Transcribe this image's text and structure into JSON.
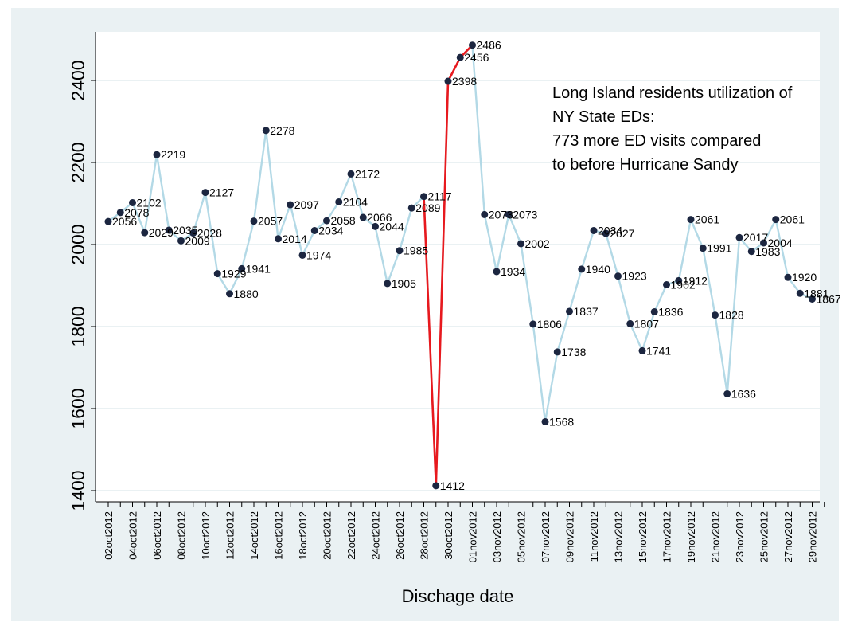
{
  "chart_data": {
    "type": "line",
    "title": "",
    "xlabel": "Dischage date",
    "ylabel": "",
    "ylim": [
      1380,
      2510
    ],
    "yticks": [
      1400,
      1600,
      1800,
      2000,
      2200,
      2400
    ],
    "grid": true,
    "legend": "none",
    "annotation": [
      "Long Island residents utilization of",
      "NY State EDs:",
      "773 more ED visits compared",
      "to before Hurricane Sandy"
    ],
    "x_tick_labels": [
      "02oct2012",
      "04oct2012",
      "06oct2012",
      "08oct2012",
      "10oct2012",
      "12oct2012",
      "14oct2012",
      "16oct2012",
      "18oct2012",
      "20oct2012",
      "22oct2012",
      "24oct2012",
      "26oct2012",
      "28oct2012",
      "30oct2012",
      "01nov2012",
      "03nov2012",
      "05nov2012",
      "07nov2012",
      "09nov2012",
      "11nov2012",
      "13nov2012",
      "15nov2012",
      "17nov2012",
      "19nov2012",
      "21nov2012",
      "23nov2012",
      "25nov2012",
      "27nov2012",
      "29nov2012"
    ],
    "x": [
      "02oct2012",
      "03oct2012",
      "04oct2012",
      "05oct2012",
      "06oct2012",
      "07oct2012",
      "08oct2012",
      "09oct2012",
      "10oct2012",
      "11oct2012",
      "12oct2012",
      "13oct2012",
      "14oct2012",
      "15oct2012",
      "16oct2012",
      "17oct2012",
      "18oct2012",
      "19oct2012",
      "20oct2012",
      "21oct2012",
      "22oct2012",
      "23oct2012",
      "24oct2012",
      "25oct2012",
      "26oct2012",
      "27oct2012",
      "28oct2012",
      "29oct2012",
      "30oct2012",
      "31oct2012",
      "01nov2012",
      "02nov2012",
      "03nov2012",
      "04nov2012",
      "05nov2012",
      "06nov2012",
      "07nov2012",
      "08nov2012",
      "09nov2012",
      "10nov2012",
      "11nov2012",
      "12nov2012",
      "13nov2012",
      "14nov2012",
      "15nov2012",
      "16nov2012",
      "17nov2012",
      "18nov2012",
      "19nov2012",
      "20nov2012",
      "21nov2012",
      "22nov2012",
      "23nov2012",
      "24nov2012",
      "25nov2012",
      "26nov2012",
      "27nov2012",
      "28nov2012",
      "29nov2012",
      "30nov2012"
    ],
    "series": [
      {
        "values": [
          2056,
          2078,
          2102,
          2029,
          2219,
          2035,
          2009,
          2028,
          2127,
          1929,
          1880,
          1941,
          2057,
          2278,
          2014,
          2097,
          1974,
          2034,
          2058,
          2104,
          2172,
          2066,
          2044,
          1905,
          1985,
          2089,
          2117,
          1412,
          2398,
          2456,
          2486,
          2073,
          1934,
          2073,
          2002,
          1806,
          1568,
          1738,
          1837,
          1940,
          2034,
          2027,
          1923,
          1807,
          1741,
          1836,
          1902,
          1912,
          2061,
          1991,
          1828,
          1636,
          2017,
          1983,
          2004,
          2061,
          1920,
          1881,
          1867,
          null
        ]
      }
    ],
    "highlight": {
      "from": "28oct2012",
      "to": "01nov2012",
      "color": "#e8191e"
    },
    "colors": {
      "line": "#b3d9e6",
      "marker": "#1c2640",
      "highlight": "#e8191e",
      "plot_bg": "#ffffff",
      "outer_bg": "#eaf1f3",
      "grid": "#eaf1f3"
    }
  }
}
